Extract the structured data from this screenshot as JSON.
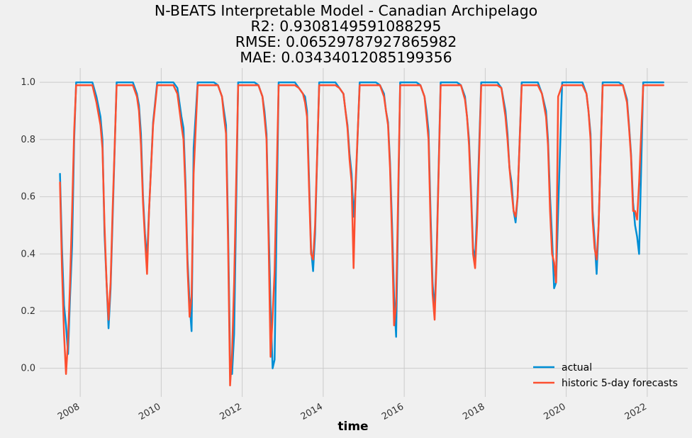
{
  "chart_data": {
    "type": "line",
    "title_lines": [
      "N-BEATS Interpretable Model - Canadian Archipelago",
      "R2: 0.9308149591088295",
      "RMSE: 0.06529787927865982",
      "MAE: 0.03434012085199356"
    ],
    "xlabel": "time",
    "ylabel": "",
    "xlim": [
      2007.0,
      2023.0
    ],
    "ylim": [
      -0.1,
      1.05
    ],
    "x_ticks": [
      2008,
      2010,
      2012,
      2014,
      2016,
      2018,
      2020,
      2022
    ],
    "x_tick_labels": [
      "2008",
      "2010",
      "2012",
      "2014",
      "2016",
      "2018",
      "2020",
      "2022"
    ],
    "y_ticks": [
      0.0,
      0.2,
      0.4,
      0.6,
      0.8,
      1.0
    ],
    "y_tick_labels": [
      "0.0",
      "0.2",
      "0.4",
      "0.6",
      "0.8",
      "1.0"
    ],
    "grid": true,
    "legend_position": "bottom-right",
    "series": [
      {
        "name": "actual",
        "color": "#008fd5",
        "x": [
          2007.5,
          2007.55,
          2007.6,
          2007.65,
          2007.7,
          2007.75,
          2007.8,
          2007.85,
          2007.9,
          2007.95,
          2008.3,
          2008.4,
          2008.5,
          2008.55,
          2008.6,
          2008.65,
          2008.7,
          2008.75,
          2008.8,
          2008.9,
          2009.3,
          2009.4,
          2009.45,
          2009.5,
          2009.55,
          2009.6,
          2009.65,
          2009.7,
          2009.8,
          2009.9,
          2010.3,
          2010.4,
          2010.5,
          2010.55,
          2010.6,
          2010.65,
          2010.7,
          2010.75,
          2010.8,
          2010.9,
          2011.3,
          2011.4,
          2011.5,
          2011.55,
          2011.6,
          2011.65,
          2011.7,
          2011.75,
          2011.8,
          2011.9,
          2012.3,
          2012.4,
          2012.5,
          2012.55,
          2012.6,
          2012.65,
          2012.7,
          2012.75,
          2012.8,
          2012.9,
          2013.3,
          2013.4,
          2013.5,
          2013.55,
          2013.6,
          2013.65,
          2013.7,
          2013.75,
          2013.8,
          2013.9,
          2014.3,
          2014.4,
          2014.5,
          2014.55,
          2014.6,
          2014.65,
          2014.7,
          2014.75,
          2014.8,
          2014.9,
          2015.3,
          2015.4,
          2015.5,
          2015.55,
          2015.6,
          2015.65,
          2015.7,
          2015.75,
          2015.8,
          2015.9,
          2016.3,
          2016.4,
          2016.5,
          2016.55,
          2016.6,
          2016.65,
          2016.7,
          2016.75,
          2016.8,
          2016.9,
          2017.3,
          2017.4,
          2017.5,
          2017.55,
          2017.6,
          2017.65,
          2017.7,
          2017.75,
          2017.8,
          2017.9,
          2018.3,
          2018.4,
          2018.5,
          2018.55,
          2018.6,
          2018.65,
          2018.7,
          2018.75,
          2018.8,
          2018.9,
          2019.3,
          2019.4,
          2019.5,
          2019.55,
          2019.6,
          2019.65,
          2019.7,
          2019.75,
          2019.8,
          2019.9,
          2020.3,
          2020.4,
          2020.5,
          2020.55,
          2020.6,
          2020.65,
          2020.7,
          2020.75,
          2020.8,
          2020.9,
          2021.3,
          2021.4,
          2021.5,
          2021.55,
          2021.6,
          2021.65,
          2021.7,
          2021.75,
          2021.8,
          2021.9,
          2022.4
        ],
        "y": [
          0.68,
          0.42,
          0.22,
          0.15,
          0.05,
          0.25,
          0.43,
          0.8,
          1.0,
          1.0,
          1.0,
          0.95,
          0.88,
          0.8,
          0.47,
          0.3,
          0.14,
          0.28,
          0.52,
          1.0,
          1.0,
          0.96,
          0.92,
          0.82,
          0.6,
          0.47,
          0.38,
          0.55,
          0.86,
          1.0,
          1.0,
          0.98,
          0.88,
          0.84,
          0.65,
          0.38,
          0.23,
          0.13,
          0.77,
          1.0,
          1.0,
          0.99,
          0.95,
          0.9,
          0.85,
          0.5,
          0.03,
          -0.02,
          0.12,
          1.0,
          1.0,
          0.99,
          0.95,
          0.9,
          0.82,
          0.5,
          0.22,
          0.0,
          0.03,
          1.0,
          1.0,
          0.98,
          0.96,
          0.95,
          0.9,
          0.66,
          0.42,
          0.34,
          0.47,
          1.0,
          1.0,
          0.98,
          0.96,
          0.9,
          0.85,
          0.75,
          0.68,
          0.53,
          0.63,
          1.0,
          1.0,
          0.99,
          0.96,
          0.9,
          0.86,
          0.72,
          0.5,
          0.25,
          0.11,
          1.0,
          1.0,
          0.99,
          0.95,
          0.9,
          0.83,
          0.54,
          0.3,
          0.2,
          0.4,
          1.0,
          1.0,
          0.99,
          0.95,
          0.88,
          0.8,
          0.62,
          0.42,
          0.38,
          0.55,
          1.0,
          1.0,
          0.98,
          0.9,
          0.82,
          0.7,
          0.65,
          0.55,
          0.51,
          0.6,
          1.0,
          1.0,
          0.96,
          0.9,
          0.8,
          0.6,
          0.46,
          0.28,
          0.3,
          0.55,
          1.0,
          1.0,
          1.0,
          0.96,
          0.9,
          0.82,
          0.55,
          0.45,
          0.33,
          0.5,
          1.0,
          1.0,
          0.99,
          0.94,
          0.85,
          0.75,
          0.58,
          0.5,
          0.46,
          0.4,
          1.0,
          1.0
        ]
      },
      {
        "name": "historic 5-day forecasts",
        "color": "#fc4f30",
        "x": [
          2007.5,
          2007.55,
          2007.6,
          2007.65,
          2007.7,
          2007.75,
          2007.8,
          2007.85,
          2007.9,
          2007.95,
          2008.3,
          2008.4,
          2008.5,
          2008.55,
          2008.6,
          2008.65,
          2008.7,
          2008.75,
          2008.8,
          2008.9,
          2009.3,
          2009.4,
          2009.45,
          2009.5,
          2009.55,
          2009.6,
          2009.65,
          2009.7,
          2009.8,
          2009.9,
          2010.3,
          2010.4,
          2010.5,
          2010.55,
          2010.6,
          2010.65,
          2010.7,
          2010.75,
          2010.8,
          2010.9,
          2011.3,
          2011.4,
          2011.5,
          2011.55,
          2011.6,
          2011.65,
          2011.7,
          2011.75,
          2011.8,
          2011.9,
          2012.3,
          2012.4,
          2012.5,
          2012.55,
          2012.6,
          2012.65,
          2012.7,
          2012.75,
          2012.8,
          2012.9,
          2013.3,
          2013.4,
          2013.5,
          2013.55,
          2013.6,
          2013.65,
          2013.7,
          2013.75,
          2013.8,
          2013.9,
          2014.3,
          2014.4,
          2014.5,
          2014.55,
          2014.6,
          2014.65,
          2014.7,
          2014.75,
          2014.8,
          2014.9,
          2015.3,
          2015.4,
          2015.5,
          2015.55,
          2015.6,
          2015.65,
          2015.7,
          2015.75,
          2015.8,
          2015.9,
          2016.3,
          2016.4,
          2016.5,
          2016.55,
          2016.6,
          2016.65,
          2016.7,
          2016.75,
          2016.8,
          2016.9,
          2017.3,
          2017.4,
          2017.5,
          2017.55,
          2017.6,
          2017.65,
          2017.7,
          2017.75,
          2017.8,
          2017.9,
          2018.3,
          2018.4,
          2018.5,
          2018.55,
          2018.6,
          2018.65,
          2018.7,
          2018.75,
          2018.8,
          2018.9,
          2019.3,
          2019.4,
          2019.5,
          2019.55,
          2019.6,
          2019.65,
          2019.7,
          2019.75,
          2019.8,
          2019.9,
          2020.3,
          2020.4,
          2020.5,
          2020.55,
          2020.6,
          2020.65,
          2020.7,
          2020.75,
          2020.8,
          2020.9,
          2021.3,
          2021.4,
          2021.5,
          2021.55,
          2021.6,
          2021.65,
          2021.7,
          2021.75,
          2021.8,
          2021.9,
          2022.4
        ],
        "y": [
          0.65,
          0.35,
          0.12,
          -0.02,
          0.1,
          0.3,
          0.55,
          0.83,
          0.99,
          0.99,
          0.99,
          0.93,
          0.85,
          0.77,
          0.5,
          0.3,
          0.17,
          0.3,
          0.55,
          0.99,
          0.99,
          0.95,
          0.9,
          0.78,
          0.58,
          0.45,
          0.33,
          0.55,
          0.85,
          0.99,
          0.99,
          0.96,
          0.85,
          0.8,
          0.62,
          0.35,
          0.18,
          0.25,
          0.68,
          0.99,
          0.99,
          0.99,
          0.95,
          0.88,
          0.82,
          0.45,
          -0.06,
          0.05,
          0.3,
          0.99,
          0.99,
          0.99,
          0.95,
          0.88,
          0.8,
          0.45,
          0.04,
          0.18,
          0.34,
          0.99,
          0.99,
          0.98,
          0.96,
          0.93,
          0.88,
          0.63,
          0.4,
          0.38,
          0.5,
          0.99,
          0.99,
          0.98,
          0.96,
          0.9,
          0.84,
          0.73,
          0.65,
          0.35,
          0.65,
          0.99,
          0.99,
          0.99,
          0.95,
          0.9,
          0.85,
          0.7,
          0.45,
          0.15,
          0.22,
          0.99,
          0.99,
          0.99,
          0.95,
          0.88,
          0.8,
          0.5,
          0.26,
          0.17,
          0.38,
          0.99,
          0.99,
          0.99,
          0.94,
          0.88,
          0.78,
          0.6,
          0.4,
          0.35,
          0.5,
          0.99,
          0.99,
          0.98,
          0.88,
          0.8,
          0.7,
          0.62,
          0.55,
          0.53,
          0.6,
          0.99,
          0.99,
          0.96,
          0.88,
          0.78,
          0.55,
          0.4,
          0.37,
          0.3,
          0.95,
          0.99,
          0.99,
          0.99,
          0.96,
          0.9,
          0.8,
          0.52,
          0.42,
          0.38,
          0.5,
          0.99,
          0.99,
          0.99,
          0.93,
          0.84,
          0.74,
          0.55,
          0.55,
          0.52,
          0.65,
          0.99,
          0.99
        ]
      }
    ]
  }
}
